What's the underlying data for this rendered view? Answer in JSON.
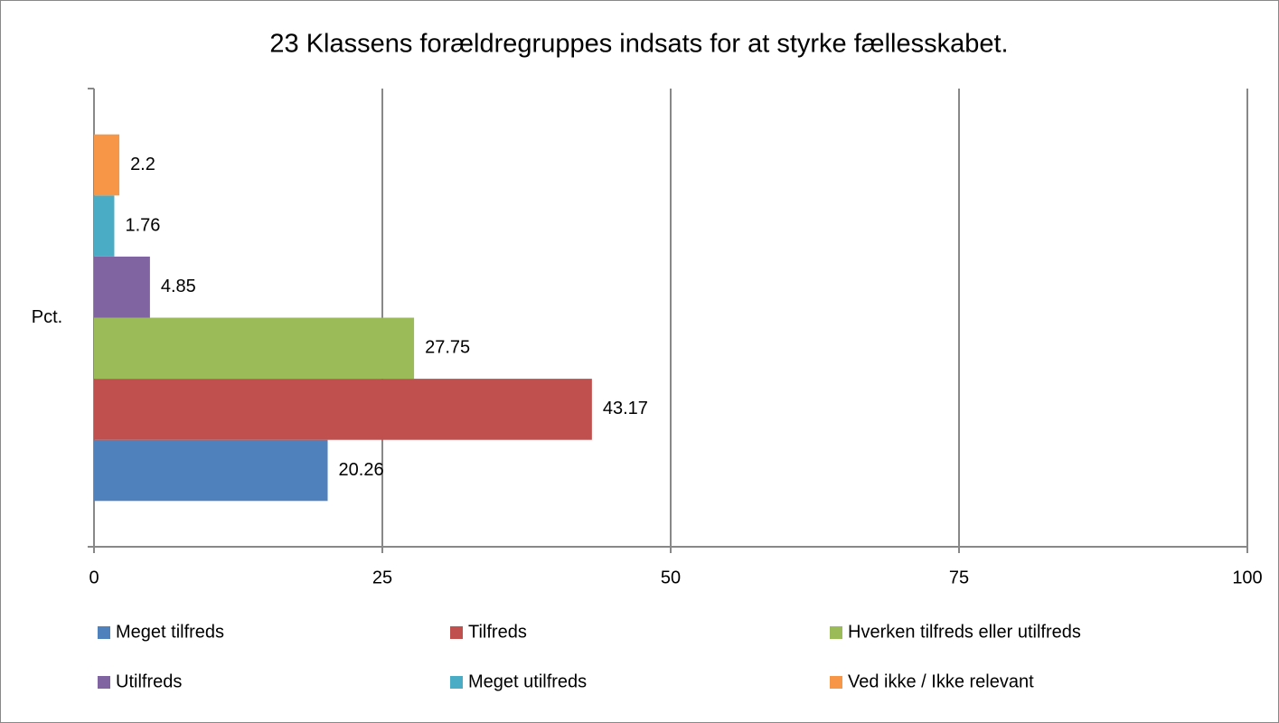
{
  "chart_data": {
    "type": "bar",
    "orientation": "horizontal",
    "title": "23 Klassens forældregruppes indsats for at styrke fællesskabet.",
    "categories": [
      "Pct."
    ],
    "series": [
      {
        "name": "Meget tilfreds",
        "color": "#4f81bd",
        "values": [
          20.26
        ]
      },
      {
        "name": "Tilfreds",
        "color": "#c0504d",
        "values": [
          43.17
        ]
      },
      {
        "name": "Hverken tilfreds eller utilfreds",
        "color": "#9bbb59",
        "values": [
          27.75
        ]
      },
      {
        "name": "Utilfreds",
        "color": "#8064a2",
        "values": [
          4.85
        ]
      },
      {
        "name": "Meget utilfreds",
        "color": "#4bacc6",
        "values": [
          1.76
        ]
      },
      {
        "name": "Ved ikke / Ikke relevant",
        "color": "#f79646",
        "values": [
          2.2
        ]
      }
    ],
    "xlim": [
      0,
      100
    ],
    "xticks": [
      0,
      25,
      50,
      75,
      100
    ],
    "grid": true,
    "legend": "bottom"
  }
}
